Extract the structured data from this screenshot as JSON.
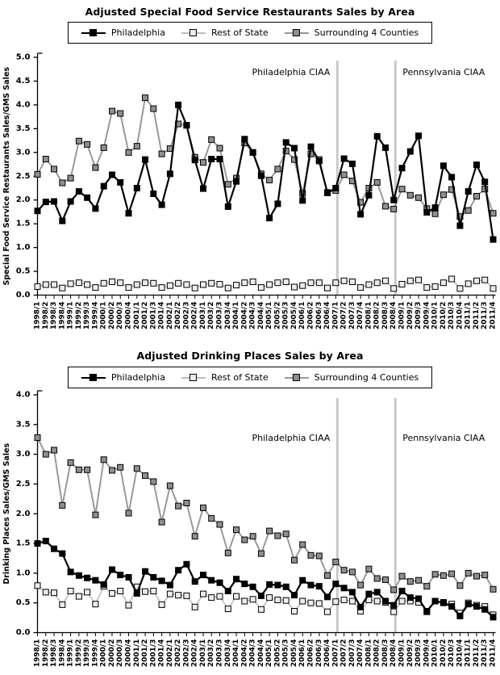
{
  "legend": {
    "items": [
      "Philadelphia",
      "Rest of State",
      "Surrounding 4 Counties"
    ]
  },
  "styles": {
    "philadelphia": {
      "line": "#000000",
      "fill": "#000000",
      "stroke": "#000000",
      "width": 2.2
    },
    "rest_of_state": {
      "line": "#bdbdbd",
      "fill": "#ececec",
      "stroke": "#000000",
      "width": 1.6
    },
    "surrounding": {
      "line": "#999999",
      "fill": "#8f8f8f",
      "stroke": "#000000",
      "width": 2.0
    },
    "annotation_line": "#c9c9c9",
    "axis": "#000000"
  },
  "chart_data": [
    {
      "type": "line",
      "title": "Adjusted Special Food Service Restaurants Sales by Area",
      "ylabel": "Special Food Service Restaurants Sales/GMS Sales",
      "xlabel": "",
      "ylim": [
        0.0,
        5.0
      ],
      "ytick_step": 0.5,
      "grid": false,
      "legend_position": "top-center",
      "categories": [
        "1998/1",
        "1998/2",
        "1998/3",
        "1998/4",
        "1999/1",
        "1999/2",
        "1999/3",
        "1999/4",
        "2000/1",
        "2000/2",
        "2000/3",
        "2000/4",
        "2001/1",
        "2001/2",
        "2001/3",
        "2001/4",
        "2002/1",
        "2002/2",
        "2002/3",
        "2002/4",
        "2003/1",
        "2003/2",
        "2003/3",
        "2003/4",
        "2004/1",
        "2004/2",
        "2004/3",
        "2004/4",
        "2005/1",
        "2005/2",
        "2005/3",
        "2005/4",
        "2006/1",
        "2006/2",
        "2006/3",
        "2006/4",
        "2007/1",
        "2007/2",
        "2007/3",
        "2007/4",
        "2008/1",
        "2008/2",
        "2008/3",
        "2008/4",
        "2009/1",
        "2009/2",
        "2009/3",
        "2009/4",
        "2010/1",
        "2010/2",
        "2010/3",
        "2010/4",
        "2011/1",
        "2011/2",
        "2011/3",
        "2011/4"
      ],
      "annotations": [
        {
          "label": "Philadelphia CIAA",
          "category": "2007/1",
          "x_index": 36,
          "label_side": "left"
        },
        {
          "label": "Pennsylvania CIAA",
          "category": "2008/4",
          "x_index": 43,
          "label_side": "right"
        }
      ],
      "series": [
        {
          "name": "Philadelphia",
          "style": "philadelphia",
          "values": [
            1.77,
            1.96,
            1.97,
            1.56,
            1.97,
            2.18,
            2.05,
            1.82,
            2.29,
            2.53,
            2.37,
            1.72,
            2.25,
            2.85,
            2.13,
            1.9,
            2.55,
            4.0,
            3.57,
            2.84,
            2.24,
            2.86,
            2.86,
            1.86,
            2.39,
            3.28,
            3.0,
            2.51,
            1.62,
            1.92,
            3.21,
            3.09,
            1.99,
            3.12,
            2.82,
            2.15,
            2.25,
            2.87,
            2.76,
            1.7,
            2.1,
            3.34,
            3.1,
            2.0,
            2.67,
            3.02,
            3.35,
            1.74,
            1.84,
            2.72,
            2.48,
            1.46,
            2.18,
            2.74,
            2.38,
            1.17
          ]
        },
        {
          "name": "Rest of State",
          "style": "rest_of_state",
          "values": [
            0.18,
            0.22,
            0.22,
            0.15,
            0.24,
            0.26,
            0.22,
            0.16,
            0.25,
            0.28,
            0.26,
            0.16,
            0.22,
            0.26,
            0.25,
            0.16,
            0.2,
            0.25,
            0.22,
            0.15,
            0.22,
            0.25,
            0.23,
            0.15,
            0.21,
            0.26,
            0.28,
            0.16,
            0.22,
            0.26,
            0.28,
            0.17,
            0.2,
            0.26,
            0.26,
            0.15,
            0.26,
            0.3,
            0.28,
            0.16,
            0.22,
            0.26,
            0.3,
            0.14,
            0.23,
            0.3,
            0.32,
            0.16,
            0.18,
            0.26,
            0.34,
            0.14,
            0.24,
            0.3,
            0.32,
            0.14
          ]
        },
        {
          "name": "Surrounding 4 Counties",
          "style": "surrounding",
          "values": [
            2.54,
            2.86,
            2.65,
            2.36,
            2.46,
            3.24,
            3.17,
            2.68,
            3.1,
            3.87,
            3.82,
            3.0,
            3.13,
            4.15,
            3.92,
            2.97,
            3.08,
            3.6,
            3.57,
            2.9,
            2.79,
            3.27,
            3.09,
            2.33,
            2.46,
            3.2,
            3.0,
            2.55,
            2.42,
            2.65,
            3.03,
            2.85,
            2.14,
            2.97,
            2.85,
            2.16,
            2.2,
            2.53,
            2.4,
            1.95,
            2.25,
            2.37,
            1.87,
            1.81,
            2.23,
            2.1,
            2.05,
            1.82,
            1.71,
            2.11,
            2.22,
            1.65,
            1.78,
            2.08,
            2.23,
            1.72
          ]
        }
      ]
    },
    {
      "type": "line",
      "title": "Adjusted Drinking Places Sales by Area",
      "ylabel": "Drinking Places Sales/GMS Sales",
      "xlabel": "",
      "ylim": [
        0.0,
        4.0
      ],
      "ytick_step": 0.5,
      "grid": false,
      "legend_position": "top-center",
      "categories": [
        "1998/1",
        "1998/2",
        "1998/3",
        "1998/4",
        "1999/1",
        "1999/2",
        "1999/3",
        "1999/4",
        "2000/1",
        "2000/2",
        "2000/3",
        "2000/4",
        "2001/1",
        "2001/2",
        "2001/3",
        "2001/4",
        "2002/1",
        "2002/2",
        "2002/3",
        "2002/4",
        "2003/1",
        "2003/2",
        "2003/3",
        "2003/4",
        "2004/1",
        "2004/2",
        "2004/3",
        "2004/4",
        "2005/1",
        "2005/2",
        "2005/3",
        "2005/4",
        "2006/1",
        "2006/2",
        "2006/3",
        "2006/4",
        "2007/1",
        "2007/2",
        "2007/3",
        "2007/4",
        "2008/1",
        "2008/2",
        "2008/3",
        "2008/4",
        "2009/1",
        "2009/2",
        "2009/3",
        "2009/4",
        "2010/1",
        "2010/2",
        "2010/3",
        "2010/4",
        "2011/1",
        "2011/2",
        "2011/3",
        "2011/4"
      ],
      "annotations": [
        {
          "label": "Philadelphia CIAA",
          "category": "2007/1",
          "x_index": 36,
          "label_side": "left"
        },
        {
          "label": "Pennsylvania CIAA",
          "category": "2008/4",
          "x_index": 43,
          "label_side": "right"
        }
      ],
      "series": [
        {
          "name": "Philadelphia",
          "style": "philadelphia",
          "values": [
            1.5,
            1.54,
            1.41,
            1.33,
            1.02,
            0.96,
            0.92,
            0.88,
            0.81,
            1.06,
            0.97,
            0.93,
            0.66,
            1.03,
            0.93,
            0.87,
            0.8,
            1.05,
            1.15,
            0.86,
            0.97,
            0.88,
            0.84,
            0.7,
            0.9,
            0.82,
            0.77,
            0.62,
            0.81,
            0.8,
            0.77,
            0.63,
            0.88,
            0.8,
            0.78,
            0.6,
            0.82,
            0.75,
            0.68,
            0.43,
            0.65,
            0.68,
            0.53,
            0.46,
            0.7,
            0.59,
            0.57,
            0.36,
            0.53,
            0.5,
            0.44,
            0.28,
            0.48,
            0.44,
            0.39,
            0.26
          ]
        },
        {
          "name": "Rest of State",
          "style": "rest_of_state",
          "values": [
            0.79,
            0.68,
            0.67,
            0.47,
            0.7,
            0.61,
            0.68,
            0.48,
            0.78,
            0.66,
            0.7,
            0.46,
            0.77,
            0.69,
            0.7,
            0.47,
            0.65,
            0.63,
            0.62,
            0.43,
            0.65,
            0.59,
            0.61,
            0.4,
            0.61,
            0.53,
            0.56,
            0.39,
            0.59,
            0.55,
            0.54,
            0.36,
            0.53,
            0.5,
            0.49,
            0.35,
            0.52,
            0.55,
            0.53,
            0.36,
            0.55,
            0.53,
            0.51,
            0.35,
            0.53,
            0.53,
            0.51,
            0.35,
            0.53,
            0.51,
            0.48,
            0.33,
            0.5,
            0.46,
            0.44,
            0.3
          ]
        },
        {
          "name": "Surrounding 4 Counties",
          "style": "surrounding",
          "values": [
            3.28,
            3.0,
            3.07,
            2.14,
            2.86,
            2.74,
            2.74,
            1.98,
            2.91,
            2.73,
            2.78,
            2.01,
            2.76,
            2.64,
            2.54,
            1.86,
            2.47,
            2.13,
            2.18,
            1.62,
            2.1,
            1.92,
            1.82,
            1.34,
            1.73,
            1.56,
            1.62,
            1.33,
            1.71,
            1.63,
            1.66,
            1.22,
            1.48,
            1.3,
            1.29,
            0.96,
            1.19,
            1.05,
            1.02,
            0.8,
            1.07,
            0.91,
            0.89,
            0.72,
            0.95,
            0.86,
            0.88,
            0.78,
            0.98,
            0.96,
            0.99,
            0.79,
            1.0,
            0.95,
            0.97,
            0.73
          ]
        }
      ]
    }
  ]
}
